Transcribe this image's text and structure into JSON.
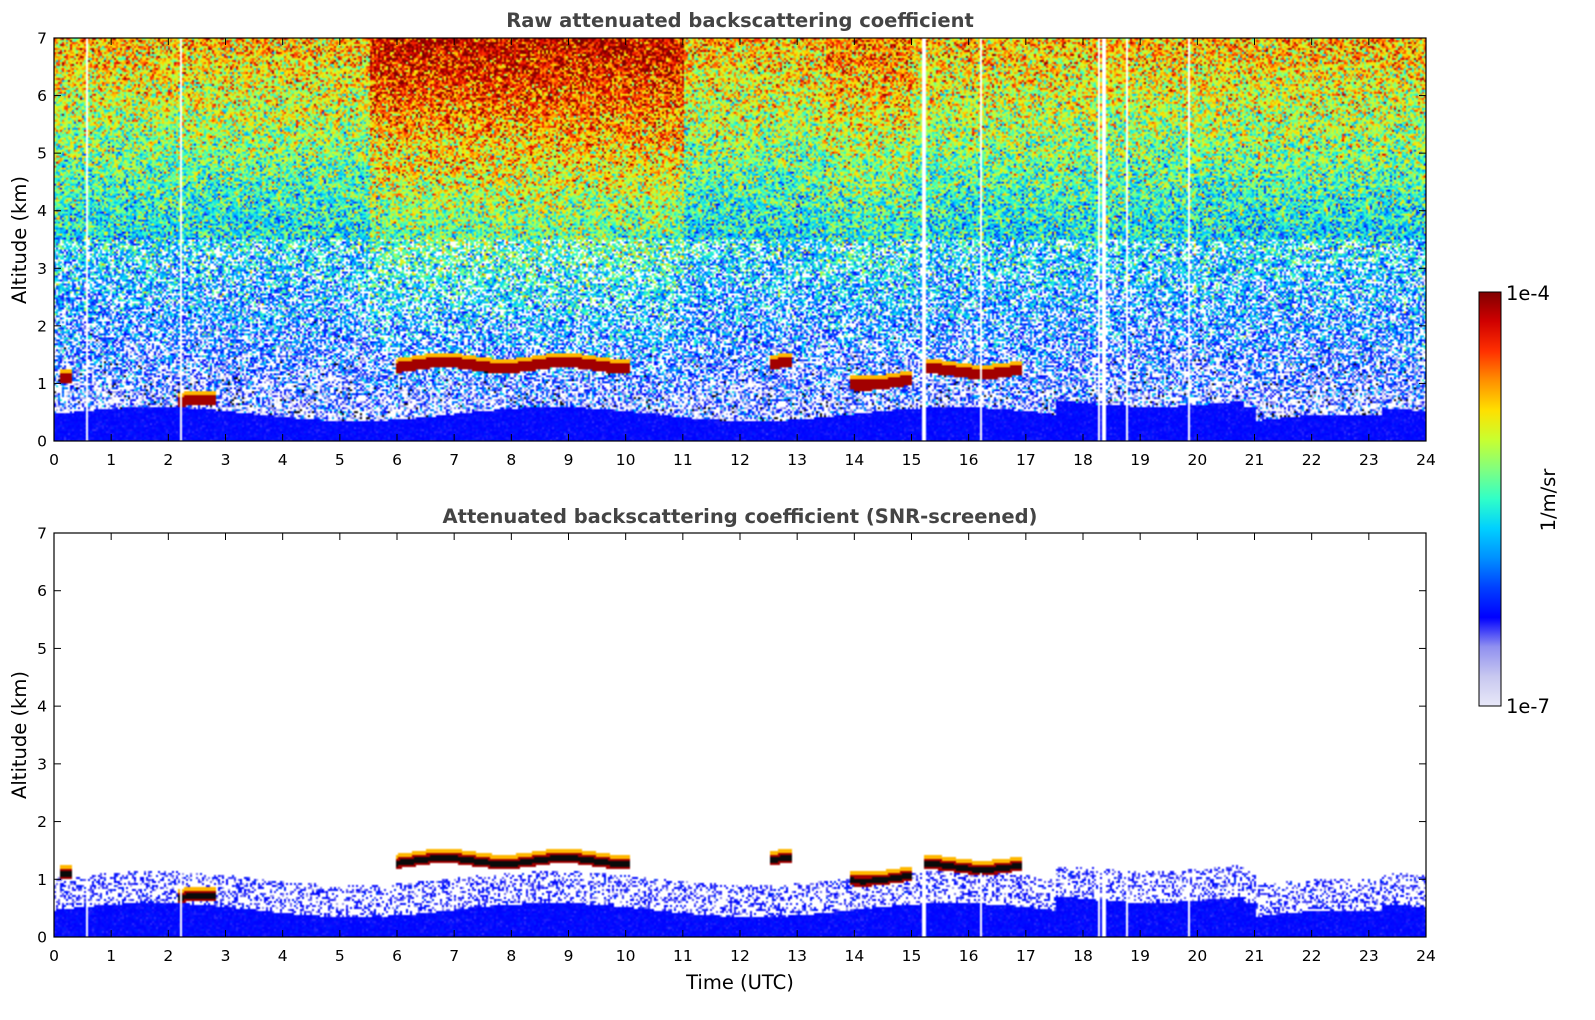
{
  "chart_data": [
    {
      "type": "heatmap",
      "title": "Raw attenuated backscattering coefficient",
      "xlabel": "",
      "ylabel": "Altitude (km)",
      "xlim": [
        0,
        24
      ],
      "ylim": [
        0,
        7
      ],
      "xticks": [
        "0",
        "1",
        "2",
        "3",
        "4",
        "5",
        "6",
        "7",
        "8",
        "9",
        "10",
        "11",
        "12",
        "13",
        "14",
        "15",
        "16",
        "17",
        "18",
        "19",
        "20",
        "21",
        "22",
        "23",
        "24"
      ],
      "yticks": [
        "0",
        "1",
        "2",
        "3",
        "4",
        "5",
        "6",
        "7"
      ],
      "screened": false,
      "gap_times": [
        0.55,
        2.2,
        15.2,
        16.2,
        18.25,
        18.35,
        18.75,
        19.85
      ],
      "cloud_layers": [
        {
          "t_start": 5.95,
          "t_end": 10.05,
          "alt": 1.3,
          "value_log10": -4.0
        },
        {
          "t_start": 15.2,
          "t_end": 16.9,
          "alt": 1.2,
          "value_log10": -4.0
        },
        {
          "t_start": 13.9,
          "t_end": 15.0,
          "alt": 1.0,
          "value_log10": -4.0
        },
        {
          "t_start": 12.5,
          "t_end": 12.9,
          "alt": 1.32,
          "value_log10": -4.0
        },
        {
          "t_start": 2.15,
          "t_end": 2.8,
          "alt": 0.65,
          "value_log10": -4.0
        },
        {
          "t_start": 0.1,
          "t_end": 0.3,
          "alt": 1.05,
          "value_log10": -4.0
        }
      ]
    },
    {
      "type": "heatmap",
      "title": "Attenuated backscattering coefficient (SNR-screened)",
      "xlabel": "Time (UTC)",
      "ylabel": "Altitude (km)",
      "xlim": [
        0,
        24
      ],
      "ylim": [
        0,
        7
      ],
      "xticks": [
        "0",
        "1",
        "2",
        "3",
        "4",
        "5",
        "6",
        "7",
        "8",
        "9",
        "10",
        "11",
        "12",
        "13",
        "14",
        "15",
        "16",
        "17",
        "18",
        "19",
        "20",
        "21",
        "22",
        "23",
        "24"
      ],
      "yticks": [
        "0",
        "1",
        "2",
        "3",
        "4",
        "5",
        "6",
        "7"
      ],
      "screened": true,
      "gap_times": [
        0.55,
        2.2,
        15.2,
        16.2,
        18.25,
        18.35,
        18.75,
        19.85
      ],
      "cloud_layers": [
        {
          "t_start": 5.95,
          "t_end": 10.05,
          "alt": 1.3,
          "value_log10": -4.0
        },
        {
          "t_start": 15.2,
          "t_end": 16.9,
          "alt": 1.2,
          "value_log10": -4.0
        },
        {
          "t_start": 13.9,
          "t_end": 15.0,
          "alt": 1.0,
          "value_log10": -4.0
        },
        {
          "t_start": 12.5,
          "t_end": 12.9,
          "alt": 1.32,
          "value_log10": -4.0
        },
        {
          "t_start": 2.15,
          "t_end": 2.8,
          "alt": 0.65,
          "value_log10": -4.0
        },
        {
          "t_start": 0.1,
          "t_end": 0.3,
          "alt": 1.05,
          "value_log10": -4.0
        }
      ]
    }
  ],
  "colorbar": {
    "label": "1/m/sr",
    "max_label": "1e-4",
    "min_label": "1e-7",
    "scale": "log",
    "colormap": "jet",
    "colors": [
      "#e8e8f8",
      "#c8c8f0",
      "#9090f0",
      "#0000ff",
      "#0040ff",
      "#0090ff",
      "#00d0ff",
      "#30ffc8",
      "#80ff80",
      "#c8ff30",
      "#ffe000",
      "#ff9000",
      "#ff3000",
      "#d00000",
      "#800000"
    ]
  }
}
